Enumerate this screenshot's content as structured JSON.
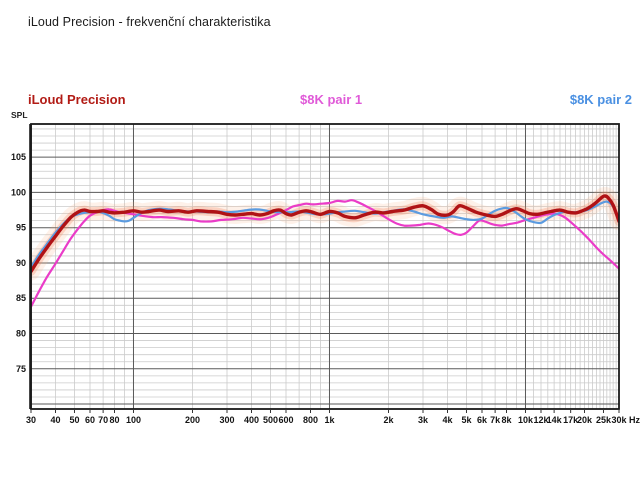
{
  "page_title": "iLoud Precision - frekvenční charakteristika",
  "legend": {
    "iloud": {
      "label": "iLoud Precision",
      "color": "#b21b15"
    },
    "pair1": {
      "label": "$8K pair 1",
      "color": "#e05ad8"
    },
    "pair2": {
      "label": "$8K pair 2",
      "color": "#4a90e2"
    }
  },
  "axis": {
    "y_unit_label": "SPL",
    "x_unit_label": "Hz",
    "y_tick_values": [
      105,
      100,
      95,
      90,
      85,
      80,
      75
    ],
    "x_tick_labels": [
      "30",
      "40",
      "50",
      "60",
      "70",
      "80",
      "100",
      "200",
      "300",
      "400",
      "500",
      "600",
      "800",
      "1k",
      "2k",
      "3k",
      "4k",
      "5k",
      "6k",
      "7k",
      "8k",
      "10k",
      "12k",
      "14k",
      "17k",
      "20k",
      "25k",
      "30k"
    ],
    "x_tick_values": [
      30,
      40,
      50,
      60,
      70,
      80,
      100,
      200,
      300,
      400,
      500,
      600,
      800,
      1000,
      2000,
      3000,
      4000,
      5000,
      6000,
      7000,
      8000,
      10000,
      12000,
      14000,
      17000,
      20000,
      25000,
      30000
    ]
  },
  "chart_data": {
    "type": "line",
    "title": "iLoud Precision - frekvenční charakteristika",
    "xlabel": "Hz",
    "ylabel": "SPL (dB)",
    "x_scale": "log",
    "xlim": [
      30,
      30000
    ],
    "ylim": [
      69.3,
      109.7
    ],
    "grid": {
      "y_major_step": 5,
      "y_minor_step": 1,
      "x_major": [
        100,
        1000,
        10000
      ],
      "x_minor": "log-decade-steps"
    },
    "legend_position": "top",
    "series": [
      {
        "name": "iLoud Precision",
        "color": "#b01215",
        "width": 3.4,
        "halo": true,
        "halo_colors": [
          "rgba(248,172,122,0.17)",
          "rgba(243,130,88,0.28)"
        ],
        "points": [
          [
            30,
            88.8
          ],
          [
            33,
            90.6
          ],
          [
            36,
            92.1
          ],
          [
            40,
            93.8
          ],
          [
            44,
            95.3
          ],
          [
            48,
            96.5
          ],
          [
            52,
            97.2
          ],
          [
            56,
            97.5
          ],
          [
            60,
            97.3
          ],
          [
            65,
            97.3
          ],
          [
            70,
            97.4
          ],
          [
            75,
            97.2
          ],
          [
            80,
            97.1
          ],
          [
            90,
            97.2
          ],
          [
            100,
            97.4
          ],
          [
            110,
            97.2
          ],
          [
            120,
            97.3
          ],
          [
            135,
            97.5
          ],
          [
            150,
            97.3
          ],
          [
            170,
            97.4
          ],
          [
            190,
            97.2
          ],
          [
            210,
            97.4
          ],
          [
            240,
            97.3
          ],
          [
            270,
            97.2
          ],
          [
            300,
            96.9
          ],
          [
            330,
            96.8
          ],
          [
            360,
            96.9
          ],
          [
            400,
            97.0
          ],
          [
            440,
            96.8
          ],
          [
            480,
            97.0
          ],
          [
            520,
            97.4
          ],
          [
            560,
            97.5
          ],
          [
            600,
            97.0
          ],
          [
            640,
            96.8
          ],
          [
            700,
            97.2
          ],
          [
            760,
            97.4
          ],
          [
            820,
            97.2
          ],
          [
            900,
            96.9
          ],
          [
            1000,
            97.3
          ],
          [
            1100,
            97.1
          ],
          [
            1200,
            96.6
          ],
          [
            1350,
            96.4
          ],
          [
            1500,
            96.8
          ],
          [
            1700,
            97.2
          ],
          [
            1900,
            97.1
          ],
          [
            2100,
            97.3
          ],
          [
            2400,
            97.5
          ],
          [
            2700,
            97.9
          ],
          [
            3000,
            98.1
          ],
          [
            3300,
            97.6
          ],
          [
            3600,
            96.9
          ],
          [
            4000,
            96.8
          ],
          [
            4300,
            97.3
          ],
          [
            4600,
            98.1
          ],
          [
            5000,
            97.8
          ],
          [
            5600,
            97.2
          ],
          [
            6300,
            96.8
          ],
          [
            7000,
            96.6
          ],
          [
            7600,
            96.9
          ],
          [
            8300,
            97.4
          ],
          [
            9000,
            97.7
          ],
          [
            9700,
            97.4
          ],
          [
            10500,
            97.0
          ],
          [
            11500,
            96.9
          ],
          [
            12500,
            97.1
          ],
          [
            13500,
            97.3
          ],
          [
            15000,
            97.5
          ],
          [
            16500,
            97.2
          ],
          [
            18000,
            97.1
          ],
          [
            19500,
            97.4
          ],
          [
            21000,
            97.8
          ],
          [
            23000,
            98.6
          ],
          [
            24500,
            99.3
          ],
          [
            25500,
            99.5
          ],
          [
            26500,
            99.2
          ],
          [
            28000,
            98.2
          ],
          [
            29500,
            96.5
          ],
          [
            30000,
            95.9
          ]
        ]
      },
      {
        "name": "$8K pair 1",
        "color": "#ea3cc8",
        "width": 2.2,
        "halo": false,
        "points": [
          [
            30,
            83.8
          ],
          [
            33,
            86.0
          ],
          [
            36,
            87.9
          ],
          [
            40,
            89.9
          ],
          [
            44,
            91.8
          ],
          [
            48,
            93.5
          ],
          [
            52,
            94.8
          ],
          [
            56,
            95.9
          ],
          [
            60,
            96.7
          ],
          [
            65,
            97.2
          ],
          [
            70,
            97.5
          ],
          [
            75,
            97.6
          ],
          [
            80,
            97.4
          ],
          [
            85,
            97.2
          ],
          [
            90,
            97.1
          ],
          [
            100,
            96.9
          ],
          [
            110,
            96.7
          ],
          [
            125,
            96.5
          ],
          [
            140,
            96.5
          ],
          [
            160,
            96.4
          ],
          [
            180,
            96.2
          ],
          [
            200,
            96.1
          ],
          [
            220,
            95.9
          ],
          [
            250,
            95.9
          ],
          [
            280,
            96.1
          ],
          [
            320,
            96.2
          ],
          [
            360,
            96.4
          ],
          [
            400,
            96.3
          ],
          [
            450,
            96.2
          ],
          [
            500,
            96.5
          ],
          [
            550,
            97.0
          ],
          [
            600,
            97.5
          ],
          [
            650,
            98.0
          ],
          [
            700,
            98.2
          ],
          [
            760,
            98.4
          ],
          [
            820,
            98.3
          ],
          [
            900,
            98.4
          ],
          [
            1000,
            98.5
          ],
          [
            1100,
            98.8
          ],
          [
            1200,
            98.7
          ],
          [
            1300,
            98.9
          ],
          [
            1400,
            98.6
          ],
          [
            1500,
            98.2
          ],
          [
            1600,
            97.8
          ],
          [
            1700,
            97.4
          ],
          [
            1850,
            96.8
          ],
          [
            2000,
            96.2
          ],
          [
            2200,
            95.6
          ],
          [
            2400,
            95.3
          ],
          [
            2600,
            95.3
          ],
          [
            2900,
            95.4
          ],
          [
            3200,
            95.6
          ],
          [
            3500,
            95.4
          ],
          [
            3800,
            95.0
          ],
          [
            4100,
            94.5
          ],
          [
            4400,
            94.1
          ],
          [
            4700,
            94.0
          ],
          [
            5000,
            94.3
          ],
          [
            5400,
            95.2
          ],
          [
            5800,
            96.0
          ],
          [
            6200,
            95.9
          ],
          [
            6600,
            95.6
          ],
          [
            7000,
            95.4
          ],
          [
            7600,
            95.3
          ],
          [
            8200,
            95.5
          ],
          [
            9000,
            95.7
          ],
          [
            10000,
            96.1
          ],
          [
            11000,
            96.4
          ],
          [
            12000,
            96.7
          ],
          [
            13000,
            96.9
          ],
          [
            14000,
            97.0
          ],
          [
            15000,
            96.8
          ],
          [
            16000,
            96.4
          ],
          [
            17000,
            95.8
          ],
          [
            18000,
            95.2
          ],
          [
            19000,
            94.6
          ],
          [
            20000,
            94.0
          ],
          [
            21500,
            93.1
          ],
          [
            23000,
            92.2
          ],
          [
            25000,
            91.2
          ],
          [
            27000,
            90.4
          ],
          [
            30000,
            89.2
          ]
        ]
      },
      {
        "name": "$8K pair 2",
        "color": "#5b9be0",
        "width": 2.2,
        "halo": false,
        "points": [
          [
            30,
            89.4
          ],
          [
            33,
            91.2
          ],
          [
            36,
            92.6
          ],
          [
            40,
            94.3
          ],
          [
            44,
            95.6
          ],
          [
            48,
            96.5
          ],
          [
            52,
            96.9
          ],
          [
            56,
            97.1
          ],
          [
            60,
            97.2
          ],
          [
            65,
            97.3
          ],
          [
            70,
            97.1
          ],
          [
            75,
            96.7
          ],
          [
            80,
            96.2
          ],
          [
            85,
            96.0
          ],
          [
            90,
            95.9
          ],
          [
            95,
            96.0
          ],
          [
            100,
            96.4
          ],
          [
            110,
            97.1
          ],
          [
            120,
            97.5
          ],
          [
            135,
            97.7
          ],
          [
            150,
            97.6
          ],
          [
            170,
            97.4
          ],
          [
            190,
            97.3
          ],
          [
            210,
            97.3
          ],
          [
            240,
            97.2
          ],
          [
            270,
            97.3
          ],
          [
            300,
            97.2
          ],
          [
            340,
            97.3
          ],
          [
            380,
            97.5
          ],
          [
            420,
            97.6
          ],
          [
            460,
            97.5
          ],
          [
            500,
            97.3
          ],
          [
            560,
            97.2
          ],
          [
            620,
            97.2
          ],
          [
            700,
            97.3
          ],
          [
            780,
            97.1
          ],
          [
            860,
            96.9
          ],
          [
            950,
            96.9
          ],
          [
            1050,
            97.1
          ],
          [
            1200,
            97.3
          ],
          [
            1350,
            97.4
          ],
          [
            1500,
            97.2
          ],
          [
            1700,
            97.0
          ],
          [
            1900,
            97.2
          ],
          [
            2100,
            97.4
          ],
          [
            2400,
            97.6
          ],
          [
            2700,
            97.3
          ],
          [
            3000,
            96.9
          ],
          [
            3400,
            96.6
          ],
          [
            3800,
            96.4
          ],
          [
            4200,
            96.6
          ],
          [
            4600,
            96.4
          ],
          [
            5000,
            96.2
          ],
          [
            5500,
            96.1
          ],
          [
            6000,
            96.3
          ],
          [
            6500,
            96.9
          ],
          [
            7000,
            97.4
          ],
          [
            7500,
            97.7
          ],
          [
            8000,
            97.8
          ],
          [
            8500,
            97.5
          ],
          [
            9000,
            97.1
          ],
          [
            9500,
            96.6
          ],
          [
            10000,
            96.2
          ],
          [
            11000,
            95.8
          ],
          [
            12000,
            95.7
          ],
          [
            13000,
            96.3
          ],
          [
            14000,
            96.8
          ],
          [
            15000,
            97.1
          ],
          [
            16000,
            97.3
          ],
          [
            17000,
            97.2
          ],
          [
            18000,
            97.2
          ],
          [
            19000,
            97.3
          ],
          [
            20000,
            97.4
          ],
          [
            21500,
            97.7
          ],
          [
            23000,
            98.1
          ],
          [
            24500,
            98.5
          ],
          [
            26000,
            98.7
          ],
          [
            27500,
            98.3
          ],
          [
            29000,
            97.2
          ],
          [
            30000,
            96.4
          ]
        ]
      }
    ]
  }
}
